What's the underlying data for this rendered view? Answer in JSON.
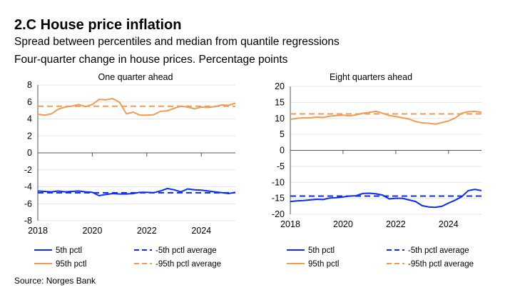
{
  "title": "2.C House price inflation",
  "subtitle": "Spread between percentiles and median from quantile regressions",
  "subtitle2": "Four-quarter change in house prices. Percentage points",
  "source": "Source: Norges Bank",
  "colors": {
    "p5": "#0a2cff",
    "p95": "#f39b53",
    "grid": "#e6e6e6",
    "axis": "#555555"
  },
  "chart_data": [
    {
      "type": "line",
      "title": "One quarter ahead",
      "x_start": "2018Q1",
      "x_end": "2025Q2",
      "xticks": [
        "2018",
        "2020",
        "2022",
        "2024"
      ],
      "ylim": [
        -8,
        8
      ],
      "yticks": [
        8,
        6,
        4,
        2,
        0,
        -2,
        -4,
        -6,
        -8
      ],
      "grid": true,
      "series": [
        {
          "name": "5th pctl",
          "style": "solid",
          "color": "#0a2cff",
          "values": [
            -4.5,
            -4.55,
            -4.6,
            -4.5,
            -4.6,
            -4.55,
            -4.5,
            -4.6,
            -4.65,
            -5.05,
            -4.9,
            -4.8,
            -4.85,
            -4.85,
            -4.8,
            -4.65,
            -4.65,
            -4.7,
            -4.5,
            -4.2,
            -4.35,
            -4.6,
            -4.25,
            -4.35,
            -4.4,
            -4.5,
            -4.6,
            -4.7,
            -4.8,
            -4.65
          ]
        },
        {
          "name": "-5th pctl average",
          "style": "dashed",
          "color": "#0a2cff",
          "value": -4.7
        },
        {
          "name": "95th pctl",
          "style": "solid",
          "color": "#f39b53",
          "values": [
            4.55,
            4.45,
            4.6,
            5.15,
            5.4,
            5.5,
            5.7,
            5.45,
            5.7,
            6.3,
            6.25,
            6.4,
            5.95,
            4.6,
            4.8,
            4.45,
            4.45,
            4.5,
            4.9,
            4.95,
            5.25,
            5.5,
            5.4,
            5.2,
            5.4,
            5.35,
            5.45,
            5.65,
            5.6,
            5.85
          ]
        },
        {
          "name": "-95th pctl average",
          "style": "dashed",
          "color": "#f39b53",
          "value": 5.5
        }
      ]
    },
    {
      "type": "line",
      "title": "Eight quarters ahead",
      "x_start": "2018Q1",
      "x_end": "2025Q2",
      "xticks": [
        "2018",
        "2020",
        "2022",
        "2024"
      ],
      "ylim": [
        -20,
        20
      ],
      "yticks": [
        20,
        15,
        10,
        5,
        0,
        -5,
        -10,
        -15,
        -20
      ],
      "grid": true,
      "series": [
        {
          "name": "5th pctl",
          "style": "solid",
          "color": "#0a2cff",
          "values": [
            -16,
            -15.8,
            -15.7,
            -15.5,
            -15.3,
            -15.4,
            -14.9,
            -14.8,
            -14.6,
            -14.3,
            -14.2,
            -13.5,
            -13.4,
            -13.6,
            -14,
            -15.2,
            -15,
            -15,
            -15.5,
            -16,
            -17.3,
            -17.7,
            -17.8,
            -17.5,
            -16.5,
            -15.6,
            -14.5,
            -12.6,
            -12.2,
            -12.6
          ]
        },
        {
          "name": "-5th pctl average",
          "style": "dashed",
          "color": "#0a2cff",
          "value": -14.3
        },
        {
          "name": "95th pctl",
          "style": "solid",
          "color": "#f39b53",
          "values": [
            9.7,
            10,
            10.2,
            10.2,
            10.4,
            10.3,
            10.7,
            10.9,
            11,
            10.8,
            11.1,
            11.6,
            11.9,
            12.2,
            11.6,
            10.9,
            10.6,
            10.2,
            9.8,
            9,
            8.6,
            8.5,
            8.2,
            8.7,
            9.2,
            10.1,
            11.6,
            12.1,
            12.2,
            11.9
          ]
        },
        {
          "name": "-95th pctl average",
          "style": "dashed",
          "color": "#f39b53",
          "value": 11.4
        }
      ]
    }
  ]
}
